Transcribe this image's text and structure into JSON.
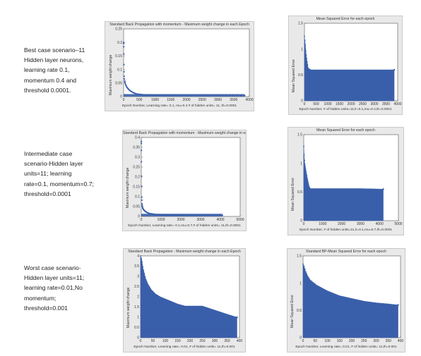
{
  "captions": {
    "best": [
      "Best case scenario–11",
      "Hidden layer neurons,",
      "learning rate 0.1,",
      "momentum 0.4 and",
      "threshold 0.0001."
    ],
    "intermediate": [
      "Intermediate case",
      "scenario-Hidden layer",
      "units=11; learning",
      "rate=0.1, momentum=0.7;",
      "threshold=0.0001"
    ],
    "worst": [
      "Worst case scenario-",
      "Hidden layer units=11;",
      "learning rate=0.01,No",
      "momentum;",
      "threshold=0.001"
    ]
  },
  "colors": {
    "data": "#3a5faa",
    "panel": "#e9e9e9",
    "axes_bg": "#ffffff"
  },
  "chart_data": [
    {
      "type": "scatter",
      "title": "Standard Back Propagation with momentum - Maximum weight change in each Epoch",
      "xlabel": "Epoch Number, Learning rate= 0.1, mu=0.4 # of hidden units= 11, th=0.0001",
      "ylabel": "Maximum weight change",
      "xlim": [
        0,
        4000
      ],
      "ylim": [
        0,
        0.25
      ],
      "xticks": [
        "0",
        "500",
        "1000",
        "1500",
        "2000",
        "2500",
        "3000",
        "3500",
        "4000"
      ],
      "yticks": [
        "0",
        "0.05",
        "0.1",
        "0.15",
        "0.2",
        "0.25"
      ],
      "points": [
        [
          1,
          0.2
        ],
        [
          3,
          0.18
        ],
        [
          8,
          0.12
        ],
        [
          15,
          0.08
        ],
        [
          30,
          0.06
        ],
        [
          60,
          0.045
        ],
        [
          100,
          0.035
        ],
        [
          150,
          0.028
        ],
        [
          200,
          0.022
        ],
        [
          300,
          0.015
        ],
        [
          400,
          0.01
        ],
        [
          600,
          0.007
        ],
        [
          1000,
          0.005
        ],
        [
          2000,
          0.004
        ],
        [
          3000,
          0.004
        ],
        [
          3850,
          0.004
        ]
      ]
    },
    {
      "type": "area",
      "title": "Mean Squared Error for each epoch",
      "xlabel": "Epoch Number, # of hidden units=11,lr=0.1,mu=0.4,th=0.0001",
      "ylabel": "Mean Squared Error",
      "xlim": [
        0,
        4000
      ],
      "ylim": [
        0,
        1.5
      ],
      "xticks": [
        "0",
        "500",
        "1000",
        "1500",
        "2000",
        "2500",
        "3000",
        "3500",
        "4000"
      ],
      "yticks": [
        "0",
        "0.5",
        "1",
        "1.5"
      ],
      "points": [
        [
          0,
          1.25
        ],
        [
          30,
          1.12
        ],
        [
          60,
          0.95
        ],
        [
          100,
          0.8
        ],
        [
          160,
          0.62
        ],
        [
          250,
          0.6
        ],
        [
          500,
          0.6
        ],
        [
          1000,
          0.6
        ],
        [
          2000,
          0.6
        ],
        [
          3000,
          0.6
        ],
        [
          3850,
          0.6
        ]
      ]
    },
    {
      "type": "scatter",
      "title": "Standard Back Propagation with momentum - Maximum weight change in each Epoch",
      "xlabel": "Epoch Number, Learning rate= 0.1,mu=0.7,# of hidden units= 11,th=0.0001",
      "ylabel": "Maximum weight change",
      "xlim": [
        0,
        5000
      ],
      "ylim": [
        0,
        0.4
      ],
      "xticks": [
        "0",
        "1000",
        "2000",
        "3000",
        "4000",
        "5000"
      ],
      "yticks": [
        "0",
        "0.05",
        "0.1",
        "0.15",
        "0.2",
        "0.25",
        "0.3",
        "0.35",
        "0.4"
      ],
      "points": [
        [
          2,
          0.38
        ],
        [
          5,
          0.3
        ],
        [
          10,
          0.2
        ],
        [
          20,
          0.1
        ],
        [
          40,
          0.06
        ],
        [
          80,
          0.04
        ],
        [
          150,
          0.03
        ],
        [
          250,
          0.022
        ],
        [
          400,
          0.015
        ],
        [
          700,
          0.01
        ],
        [
          1000,
          0.008
        ],
        [
          2000,
          0.006
        ],
        [
          3000,
          0.006
        ],
        [
          4100,
          0.006
        ]
      ]
    },
    {
      "type": "area",
      "title": "Mean Squared Error for each epoch",
      "xlabel": "Epoch Number, # of hidden units=11,lr=0.1,mu=0.7,th=0.0001",
      "ylabel": "Mean Squared Error",
      "xlim": [
        0,
        5000
      ],
      "ylim": [
        0,
        1.5
      ],
      "xticks": [
        "0",
        "1000",
        "2000",
        "3000",
        "4000",
        "5000"
      ],
      "yticks": [
        "0",
        "0.5",
        "1",
        "1.5"
      ],
      "points": [
        [
          0,
          1.3
        ],
        [
          20,
          1.15
        ],
        [
          50,
          1.0
        ],
        [
          100,
          0.9
        ],
        [
          180,
          0.75
        ],
        [
          260,
          0.62
        ],
        [
          350,
          0.56
        ],
        [
          800,
          0.56
        ],
        [
          2000,
          0.56
        ],
        [
          3000,
          0.56
        ],
        [
          4200,
          0.55
        ]
      ]
    },
    {
      "type": "area",
      "title": "Standard Back Propagation - Maximum weight change in each Epoch",
      "xlabel": "Epoch Number, Learning rate= 0.01, # of hidden units= 11,th=0.001",
      "ylabel": "Maximum weight change",
      "xlim": [
        0,
        400
      ],
      "ylim": [
        0,
        4
      ],
      "xticks": [
        "0",
        "50",
        "100",
        "150",
        "200",
        "250",
        "300",
        "350",
        "400"
      ],
      "yticks": [
        "0",
        "0.5",
        "1",
        "1.5",
        "2",
        "2.5",
        "3",
        "3.5",
        "4"
      ],
      "points": [
        [
          0,
          4.0
        ],
        [
          5,
          3.8
        ],
        [
          10,
          3.4
        ],
        [
          20,
          2.9
        ],
        [
          30,
          2.6
        ],
        [
          40,
          2.4
        ],
        [
          60,
          2.15
        ],
        [
          80,
          2.0
        ],
        [
          100,
          1.9
        ],
        [
          150,
          1.65
        ],
        [
          180,
          1.55
        ],
        [
          200,
          1.55
        ],
        [
          250,
          1.55
        ],
        [
          300,
          1.35
        ],
        [
          350,
          1.15
        ],
        [
          390,
          1.0
        ]
      ]
    },
    {
      "type": "area",
      "title": "Standard BP-Mean Squared Error for each epoch",
      "xlabel": "Epoch Number, Learning rate= 0.01, # of hidden units= 11,th=0.001",
      "ylabel": "Mean Squared Error",
      "xlim": [
        0,
        400
      ],
      "ylim": [
        0,
        1.5
      ],
      "xticks": [
        "0",
        "50",
        "100",
        "150",
        "200",
        "250",
        "300",
        "350",
        "400"
      ],
      "yticks": [
        "0",
        "0.5",
        "1",
        "1.5"
      ],
      "points": [
        [
          0,
          1.35
        ],
        [
          5,
          1.3
        ],
        [
          10,
          1.22
        ],
        [
          20,
          1.12
        ],
        [
          30,
          1.05
        ],
        [
          50,
          0.98
        ],
        [
          75,
          0.92
        ],
        [
          100,
          0.86
        ],
        [
          150,
          0.77
        ],
        [
          200,
          0.72
        ],
        [
          250,
          0.67
        ],
        [
          300,
          0.64
        ],
        [
          350,
          0.62
        ],
        [
          390,
          0.6
        ]
      ]
    }
  ]
}
